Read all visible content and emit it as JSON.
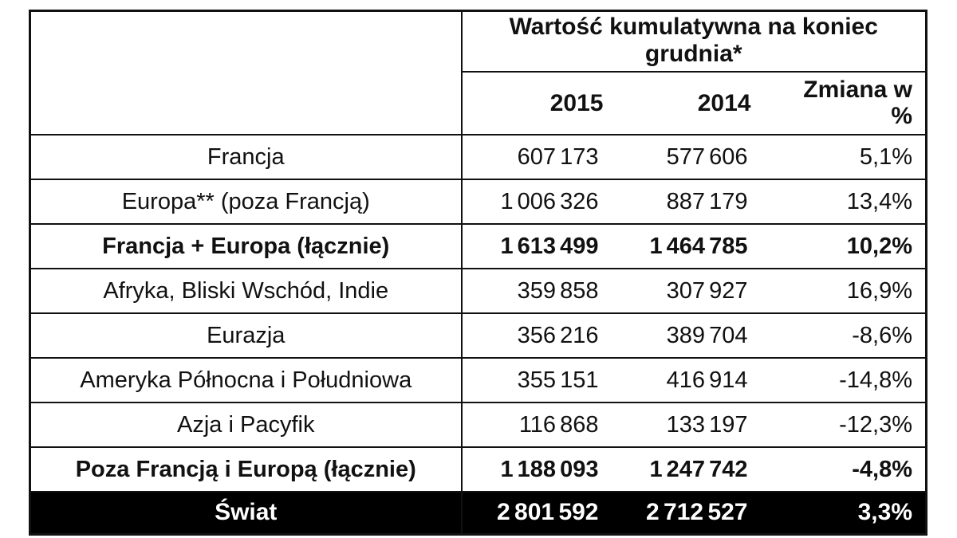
{
  "colors": {
    "background": "#ffffff",
    "text": "#111111",
    "border": "#111111",
    "total_row_bg": "#000000",
    "total_row_text": "#ffffff"
  },
  "table": {
    "header": {
      "group_title": "Wartość kumulatywna na koniec grudnia*",
      "year_2015": "2015",
      "year_2014": "2014",
      "change_label": "Zmiana w %"
    },
    "rows": [
      {
        "label": "Francja",
        "v2015": "607 173",
        "v2014": "577 606",
        "change": "5,1%"
      },
      {
        "label": "Europa** (poza Francją)",
        "v2015": "1 006 326",
        "v2014": "887 179",
        "change": "13,4%"
      },
      {
        "label": "Francja + Europa (łącznie)",
        "v2015": "1 613 499",
        "v2014": "1 464 785",
        "change": "10,2%"
      },
      {
        "label": "Afryka, Bliski Wschód, Indie",
        "v2015": "359 858",
        "v2014": "307 927",
        "change": "16,9%"
      },
      {
        "label": "Eurazja",
        "v2015": "356 216",
        "v2014": "389 704",
        "change": "-8,6%"
      },
      {
        "label": "Ameryka Północna i Południowa",
        "v2015": "355 151",
        "v2014": "416 914",
        "change": "-14,8%"
      },
      {
        "label": "Azja i Pacyfik",
        "v2015": "116 868",
        "v2014": "133 197",
        "change": "-12,3%"
      },
      {
        "label": "Poza Francją i Europą (łącznie)",
        "v2015": "1 188 093",
        "v2014": "1 247 742",
        "change": "-4,8%"
      },
      {
        "label": "Świat",
        "v2015": "2 801 592",
        "v2014": "2 712 527",
        "change": "3,3%"
      }
    ]
  },
  "chart_data": {
    "type": "table",
    "title": "Wartość kumulatywna na koniec grudnia*",
    "columns": [
      "",
      "2015",
      "2014",
      "Zmiana w %"
    ],
    "rows": [
      [
        "Francja",
        607173,
        577606,
        "5,1%"
      ],
      [
        "Europa** (poza Francją)",
        1006326,
        887179,
        "13,4%"
      ],
      [
        "Francja + Europa (łącznie)",
        1613499,
        1464785,
        "10,2%"
      ],
      [
        "Afryka, Bliski Wschód, Indie",
        359858,
        307927,
        "16,9%"
      ],
      [
        "Eurazja",
        356216,
        389704,
        "-8,6%"
      ],
      [
        "Ameryka Północna i Południowa",
        355151,
        416914,
        "-14,8%"
      ],
      [
        "Azja i Pacyfik",
        116868,
        133197,
        "-12,3%"
      ],
      [
        "Poza Francją i Europą (łącznie)",
        1188093,
        1247742,
        "-4,8%"
      ],
      [
        "Świat",
        2801592,
        2712527,
        "3,3%"
      ]
    ],
    "notes": [
      "bold rows: Francja + Europa (łącznie), Poza Francją i Europą (łącznie)",
      "inverted total row: Świat"
    ]
  }
}
